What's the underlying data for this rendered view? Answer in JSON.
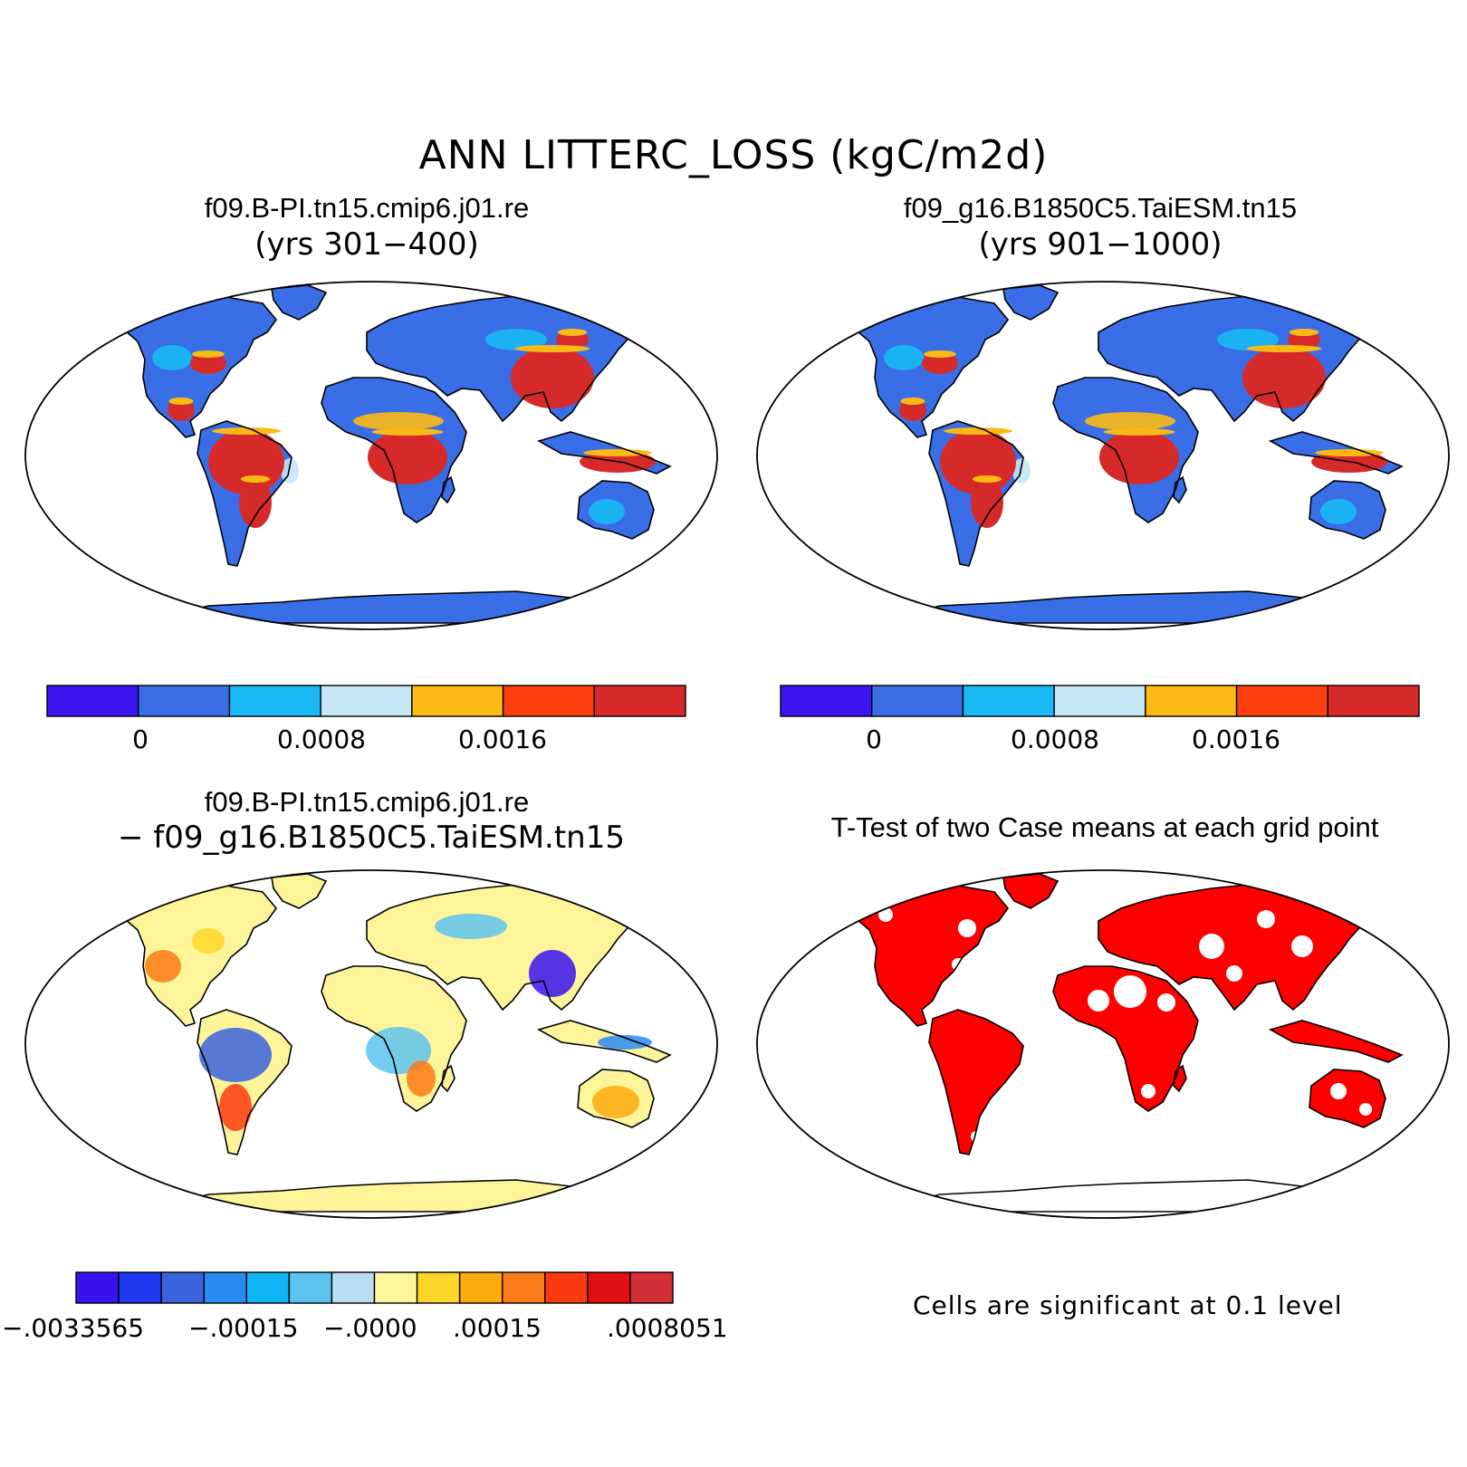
{
  "figure": {
    "title": "ANN LITTERC_LOSS (kgC/m2d)"
  },
  "panels": [
    {
      "id": "case1",
      "case_name": "f09.B-PI.tn15.cmip6.j01.re",
      "years": "(yrs 301−400)",
      "colorbar": {
        "colors": [
          "#3c14f2",
          "#3a6ee6",
          "#18b9f5",
          "#c6e6f5",
          "#fdb914",
          "#fc3f0d",
          "#d62a2a"
        ],
        "tick_labels": [
          "0",
          "0.0008",
          "0.0016"
        ]
      }
    },
    {
      "id": "case2",
      "case_name": "f09_g16.B1850C5.TaiESM.tn15",
      "years": "(yrs 901−1000)",
      "colorbar": {
        "colors": [
          "#3c14f2",
          "#3a6ee6",
          "#18b9f5",
          "#c6e6f5",
          "#fdb914",
          "#fc3f0d",
          "#d62a2a"
        ],
        "tick_labels": [
          "0",
          "0.0008",
          "0.0016"
        ]
      }
    },
    {
      "id": "difference",
      "case_name": "f09.B-PI.tn15.cmip6.j01.re",
      "minus_case": "− f09_g16.B1850C5.TaiESM.tn15",
      "colorbar": {
        "colors": [
          "#3a12f0",
          "#1e38ef",
          "#3a63de",
          "#2a8af4",
          "#10b6f3",
          "#5cc3ef",
          "#b7def2",
          "#fef59a",
          "#fdd627",
          "#fcaa0c",
          "#fb7a17",
          "#fb3a0f",
          "#e01010",
          "#d23036"
        ],
        "tick_labels": [
          "−.0033565",
          "−.00015",
          "−.0000",
          ".00015",
          ".0008051"
        ]
      }
    },
    {
      "id": "ttest",
      "title": "T-Test of two Case means at each grid point",
      "note": "Cells are significant at 0.1 level",
      "significant_color": "#ff0000"
    }
  ],
  "map_fill": {
    "case_ocean": "#ffffff",
    "case_land": "#3a6ee6",
    "case_warm_region": "#d62a2a",
    "diff_land": "#fef59a",
    "ttest_land": "#ff0000"
  }
}
